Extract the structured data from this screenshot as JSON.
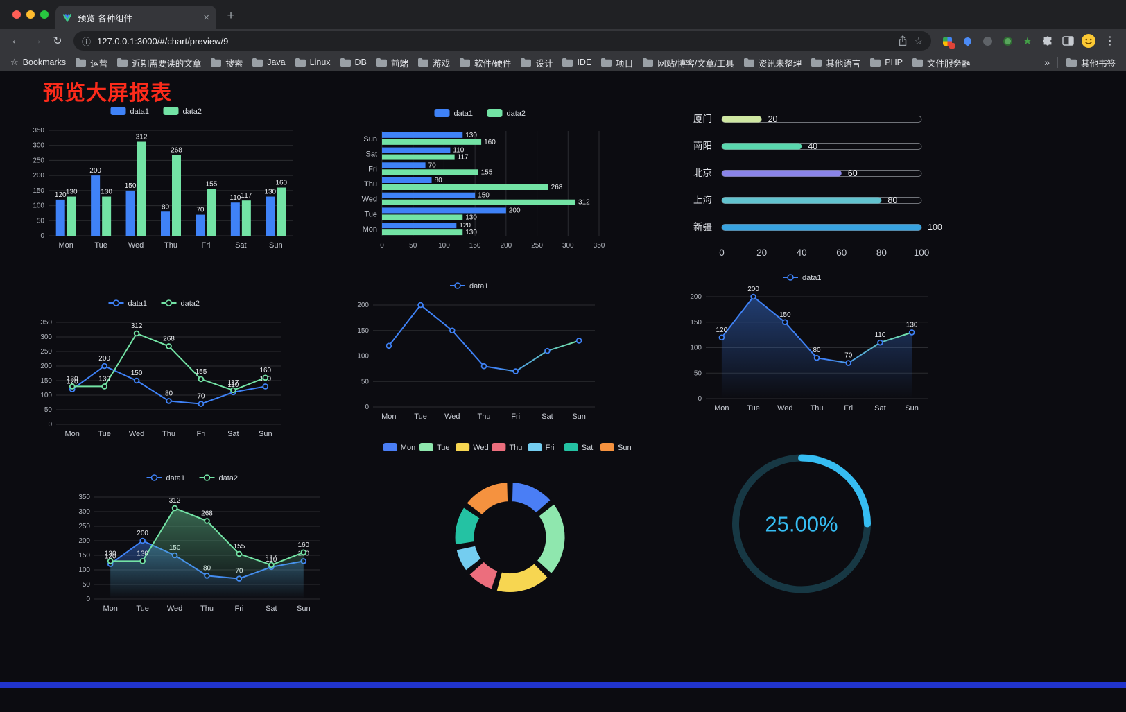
{
  "browser": {
    "tab": {
      "title": "预览-各种组件",
      "close_glyph": "×",
      "new_tab_glyph": "+"
    },
    "nav": {
      "back_glyph": "←",
      "forward_glyph": "→",
      "reload_glyph": "↻",
      "menu_glyph": "⋮"
    },
    "address": {
      "host": "127.0.0.1:3000",
      "path": "/#/chart/preview/9",
      "info_glyph": "ⓘ",
      "star_glyph": "☆"
    },
    "bookmarks": {
      "bookmarks_label": "Bookmarks",
      "star_glyph": "☆",
      "folders": [
        "运营",
        "近期需要读的文章",
        "搜索",
        "Java",
        "Linux",
        "DB",
        "前端",
        "游戏",
        "软件/硬件",
        "设计",
        "IDE",
        "项目",
        "网站/博客/文章/工具",
        "资讯未整理",
        "其他语言",
        "PHP",
        "文件服务器"
      ],
      "overflow_glyph": "»",
      "other_label": "其他书签"
    }
  },
  "page": {
    "title": "预览大屏报表"
  },
  "chart_data": [
    {
      "id": "grouped-bar",
      "type": "bar",
      "render": "bar",
      "categories": [
        "Mon",
        "Tue",
        "Wed",
        "Thu",
        "Fri",
        "Sat",
        "Sun"
      ],
      "series": [
        {
          "name": "data1",
          "color": "#3f82f7",
          "values": [
            120,
            200,
            150,
            80,
            70,
            110,
            130
          ]
        },
        {
          "name": "data2",
          "color": "#73e3a5",
          "values": [
            130,
            130,
            312,
            268,
            155,
            117,
            160
          ]
        }
      ],
      "ylim": [
        0,
        350
      ],
      "ystep": 50,
      "value_labels": true,
      "legend_position": "top",
      "grid": true
    },
    {
      "id": "grouped-hbar",
      "type": "bar",
      "render": "hbar",
      "orientation": "horizontal",
      "categories": [
        "Mon",
        "Tue",
        "Wed",
        "Thu",
        "Fri",
        "Sat",
        "Sun"
      ],
      "series": [
        {
          "name": "data1",
          "color": "#3f82f7",
          "values": [
            120,
            200,
            150,
            80,
            70,
            110,
            130
          ]
        },
        {
          "name": "data2",
          "color": "#73e3a5",
          "values": [
            130,
            130,
            312,
            268,
            155,
            117,
            160
          ]
        }
      ],
      "xlim": [
        0,
        350
      ],
      "xstep": 50,
      "value_labels": true,
      "legend_position": "top",
      "grid": true
    },
    {
      "id": "city-progress",
      "type": "bar",
      "render": "progress",
      "orientation": "horizontal",
      "items": [
        {
          "name": "厦门",
          "value": 20,
          "color": "#cfe7a2"
        },
        {
          "name": "南阳",
          "value": 40,
          "color": "#5ad8ae"
        },
        {
          "name": "北京",
          "value": 60,
          "color": "#8a84e8"
        },
        {
          "name": "上海",
          "value": 80,
          "color": "#62c3cf"
        },
        {
          "name": "新疆",
          "value": 100,
          "color": "#38a3e0"
        }
      ],
      "xlim": [
        0,
        100
      ],
      "xticks": [
        0,
        20,
        40,
        60,
        80,
        100
      ]
    },
    {
      "id": "two-line",
      "type": "line",
      "render": "line",
      "categories": [
        "Mon",
        "Tue",
        "Wed",
        "Thu",
        "Fri",
        "Sat",
        "Sun"
      ],
      "series": [
        {
          "name": "data1",
          "color": "#3f82f7",
          "values": [
            120,
            200,
            150,
            80,
            70,
            110,
            130
          ]
        },
        {
          "name": "data2",
          "color": "#73e3a5",
          "values": [
            130,
            130,
            312,
            268,
            155,
            117,
            160
          ]
        }
      ],
      "ylim": [
        0,
        350
      ],
      "ystep": 50,
      "value_labels": true,
      "legend_position": "top",
      "grid": true
    },
    {
      "id": "one-line",
      "type": "line",
      "render": "line",
      "categories": [
        "Mon",
        "Tue",
        "Wed",
        "Thu",
        "Fri",
        "Sat",
        "Sun"
      ],
      "series": [
        {
          "name": "data1",
          "color": "#3f82f7",
          "gradient_to": "#73e3a5",
          "values": [
            120,
            200,
            150,
            80,
            70,
            110,
            130
          ]
        }
      ],
      "ylim": [
        0,
        200
      ],
      "ystep": 50,
      "value_labels": false,
      "legend_position": "top",
      "grid": true
    },
    {
      "id": "one-area",
      "type": "area",
      "render": "line",
      "categories": [
        "Mon",
        "Tue",
        "Wed",
        "Thu",
        "Fri",
        "Sat",
        "Sun"
      ],
      "series": [
        {
          "name": "data1",
          "color": "#3f82f7",
          "gradient_to": "#73e3a5",
          "values": [
            120,
            200,
            150,
            80,
            70,
            110,
            130
          ]
        }
      ],
      "ylim": [
        0,
        200
      ],
      "ystep": 50,
      "value_labels": true,
      "legend_position": "top",
      "grid": true
    },
    {
      "id": "two-area",
      "type": "area",
      "render": "line",
      "categories": [
        "Mon",
        "Tue",
        "Wed",
        "Thu",
        "Fri",
        "Sat",
        "Sun"
      ],
      "series": [
        {
          "name": "data1",
          "color": "#3f82f7",
          "values": [
            120,
            200,
            150,
            80,
            70,
            110,
            130
          ]
        },
        {
          "name": "data2",
          "color": "#73e3a5",
          "values": [
            130,
            130,
            312,
            268,
            155,
            117,
            160
          ]
        }
      ],
      "ylim": [
        0,
        350
      ],
      "ystep": 50,
      "value_labels": true,
      "legend_position": "top",
      "grid": true
    },
    {
      "id": "week-donut",
      "type": "pie",
      "render": "pie",
      "categories": [
        "Mon",
        "Tue",
        "Wed",
        "Thu",
        "Fri",
        "Sat",
        "Sun"
      ],
      "values": [
        120,
        200,
        150,
        80,
        70,
        110,
        130
      ],
      "colors": [
        "#4a7ef5",
        "#8fe7ae",
        "#f7d651",
        "#ec6e7d",
        "#74cdf0",
        "#24c2a3",
        "#f5923f"
      ],
      "legend_position": "top"
    },
    {
      "id": "ring-progress",
      "type": "pie",
      "render": "gauge",
      "value": 25,
      "label": "25.00%",
      "color": "#36bdf2",
      "track_color": "#173844"
    }
  ]
}
